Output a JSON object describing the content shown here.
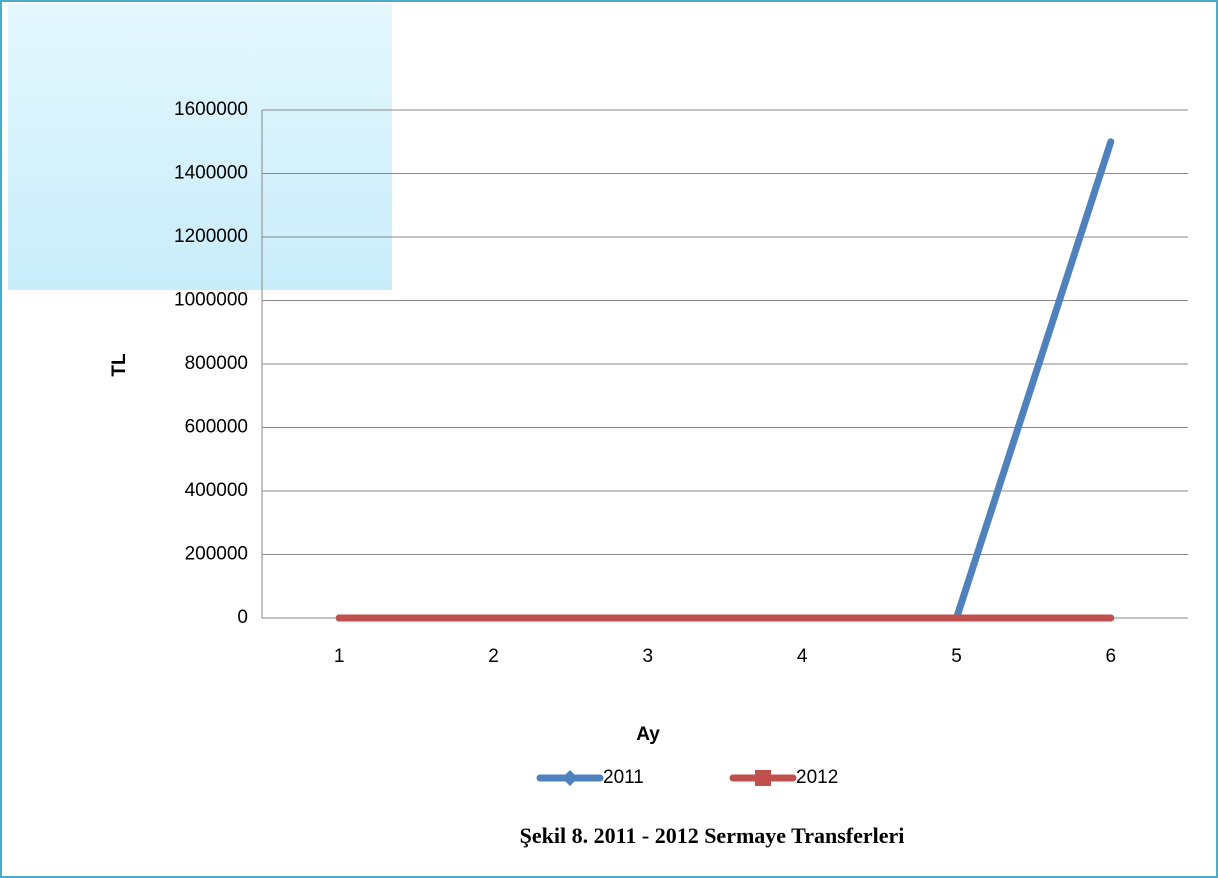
{
  "chart_data": {
    "type": "line",
    "caption": "Şekil 8. 2011 - 2012  Sermaye Transferleri",
    "x_label": "Ay",
    "y_label": "TL",
    "categories": [
      "1",
      "2",
      "3",
      "4",
      "5",
      "6"
    ],
    "series": [
      {
        "name": "2011",
        "color": "#4f81bd",
        "values": [
          0,
          0,
          0,
          0,
          0,
          1500000
        ]
      },
      {
        "name": "2012",
        "color": "#c0504d",
        "values": [
          0,
          0,
          0,
          0,
          0,
          0
        ]
      }
    ],
    "ylim": [
      0,
      1600000
    ],
    "yticks": [
      0,
      200000,
      400000,
      600000,
      800000,
      1000000,
      1200000,
      1400000,
      1600000
    ],
    "grid": true,
    "legend": "bottom"
  }
}
